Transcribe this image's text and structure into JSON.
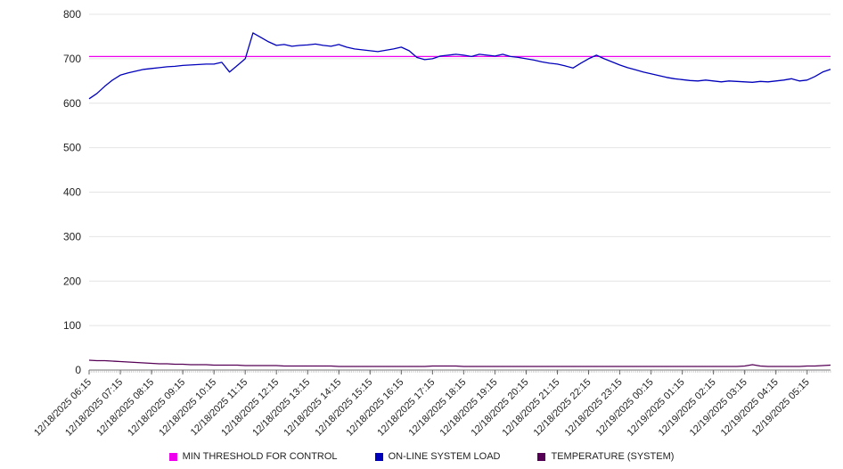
{
  "chart_data": {
    "type": "line",
    "title": "",
    "xlabel": "",
    "ylabel": "",
    "ylim": [
      0,
      800
    ],
    "y_ticks": [
      0,
      100,
      200,
      300,
      400,
      500,
      600,
      700,
      800
    ],
    "grid": "horizontal",
    "legend_position": "bottom",
    "points_per_tick": 4,
    "x_tick_labels": [
      "12/18/2025 06:15",
      "12/18/2025 07:15",
      "12/18/2025 08:15",
      "12/18/2025 09:15",
      "12/18/2025 10:15",
      "12/18/2025 11:15",
      "12/18/2025 12:15",
      "12/18/2025 13:15",
      "12/18/2025 14:15",
      "12/18/2025 15:15",
      "12/18/2025 16:15",
      "12/18/2025 17:15",
      "12/18/2025 18:15",
      "12/18/2025 19:15",
      "12/18/2025 20:15",
      "12/18/2025 21:15",
      "12/18/2025 22:15",
      "12/18/2025 23:15",
      "12/19/2025 00:15",
      "12/19/2025 01:15",
      "12/19/2025 02:15",
      "12/19/2025 03:15",
      "12/19/2025 04:15",
      "12/19/2025 05:15"
    ],
    "series": [
      {
        "name": "MIN THRESHOLD FOR CONTROL",
        "color": "#ee00ee",
        "constant": 705
      },
      {
        "name": "ON-LINE SYSTEM LOAD",
        "color": "#0000bb",
        "values": [
          610,
          622,
          638,
          652,
          663,
          668,
          672,
          676,
          678,
          680,
          682,
          683,
          685,
          686,
          687,
          688,
          688,
          692,
          670,
          685,
          700,
          758,
          748,
          738,
          730,
          732,
          728,
          730,
          731,
          733,
          730,
          728,
          732,
          726,
          722,
          720,
          718,
          716,
          719,
          722,
          726,
          718,
          703,
          698,
          700,
          706,
          708,
          710,
          708,
          705,
          710,
          708,
          706,
          710,
          705,
          703,
          700,
          697,
          693,
          690,
          688,
          684,
          679,
          690,
          700,
          708,
          700,
          693,
          686,
          680,
          675,
          670,
          666,
          662,
          658,
          655,
          653,
          651,
          650,
          652,
          650,
          648,
          650,
          649,
          648,
          647,
          649,
          648,
          650,
          652,
          655,
          650,
          652,
          660,
          670,
          676
        ]
      },
      {
        "name": "TEMPERATURE (SYSTEM)",
        "color": "#550055",
        "values": [
          22,
          21,
          21,
          20,
          19,
          18,
          17,
          16,
          15,
          14,
          14,
          13,
          13,
          12,
          12,
          12,
          11,
          11,
          11,
          11,
          10,
          10,
          10,
          10,
          10,
          9,
          9,
          9,
          9,
          9,
          9,
          9,
          8,
          8,
          8,
          8,
          8,
          8,
          8,
          8,
          8,
          8,
          8,
          8,
          9,
          9,
          9,
          9,
          8,
          8,
          8,
          8,
          8,
          8,
          8,
          8,
          8,
          8,
          8,
          8,
          8,
          8,
          8,
          8,
          8,
          8,
          8,
          8,
          8,
          8,
          8,
          8,
          8,
          8,
          8,
          8,
          8,
          8,
          8,
          8,
          8,
          8,
          8,
          8,
          9,
          12,
          9,
          8,
          8,
          8,
          8,
          8,
          9,
          9,
          10,
          11
        ]
      }
    ]
  },
  "legend": {
    "items": [
      {
        "label": "MIN THRESHOLD FOR CONTROL",
        "color": "#ee00ee"
      },
      {
        "label": "ON-LINE SYSTEM LOAD",
        "color": "#0000bb"
      },
      {
        "label": "TEMPERATURE (SYSTEM)",
        "color": "#550055"
      }
    ]
  }
}
